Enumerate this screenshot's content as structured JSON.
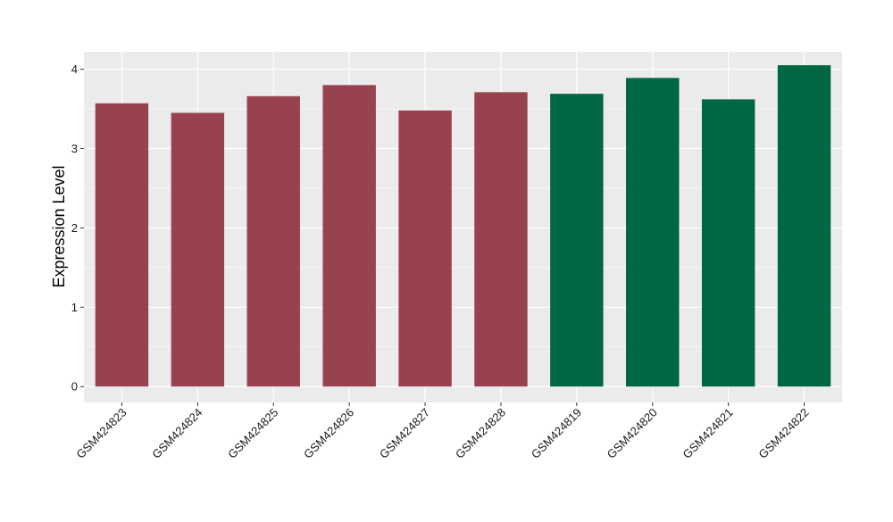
{
  "chart_data": {
    "type": "bar",
    "categories": [
      "GSM424823",
      "GSM424824",
      "GSM424825",
      "GSM424826",
      "GSM424827",
      "GSM424828",
      "GSM424819",
      "GSM424820",
      "GSM424821",
      "GSM424822"
    ],
    "values": [
      3.57,
      3.45,
      3.66,
      3.8,
      3.48,
      3.71,
      3.69,
      3.89,
      3.62,
      4.05
    ],
    "groups": [
      "red",
      "red",
      "red",
      "red",
      "red",
      "red",
      "green",
      "green",
      "green",
      "green"
    ],
    "colors": {
      "red": "#99424f",
      "green": "#006743"
    },
    "title": "",
    "xlabel": "",
    "ylabel": "Expression Level",
    "ylim": [
      -0.2,
      4.22
    ],
    "yticks": [
      0,
      1,
      2,
      3,
      4
    ],
    "grid": true,
    "panel_background": "#ebebeb",
    "grid_color": "#ffffff"
  }
}
